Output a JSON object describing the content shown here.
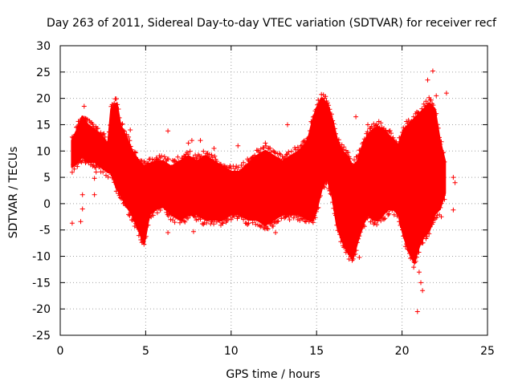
{
  "chart_data": {
    "type": "scatter",
    "title": "Day 263 of 2011, Sidereal Day-to-day VTEC variation (SDTVAR) for receiver recf",
    "xlabel": "GPS time / hours",
    "ylabel": "SDTVAR / TECUs",
    "xlim": [
      0,
      25
    ],
    "ylim": [
      -25,
      30
    ],
    "xticks": [
      0,
      5,
      10,
      15,
      20,
      25
    ],
    "yticks": [
      -25,
      -20,
      -15,
      -10,
      -5,
      0,
      5,
      10,
      15,
      20,
      25,
      30
    ],
    "grid": true,
    "marker": "+",
    "color": "#ff0000",
    "envelope": {
      "description": "Dense point cloud approximated as a min/max band over GPS time",
      "x": [
        0.7,
        1.0,
        1.3,
        1.6,
        2.0,
        2.4,
        2.8,
        3.0,
        3.3,
        3.5,
        3.8,
        4.2,
        4.6,
        4.9,
        5.2,
        5.6,
        6.0,
        6.5,
        7.0,
        7.5,
        8.0,
        8.5,
        9.0,
        9.5,
        10.0,
        10.5,
        11.0,
        11.5,
        12.0,
        12.5,
        13.0,
        13.5,
        14.0,
        14.5,
        14.8,
        15.0,
        15.3,
        15.6,
        15.9,
        16.2,
        16.5,
        16.8,
        17.1,
        17.4,
        17.7,
        18.0,
        18.3,
        18.6,
        18.9,
        19.2,
        19.5,
        19.8,
        20.1,
        20.4,
        20.7,
        21.0,
        21.3,
        21.6,
        21.9,
        22.2,
        22.5
      ],
      "ymax": [
        12.0,
        14.0,
        16.5,
        15.0,
        14.0,
        13.0,
        11.0,
        18.0,
        19.0,
        15.0,
        13.0,
        10.0,
        8.0,
        7.0,
        7.5,
        8.0,
        8.0,
        7.0,
        8.0,
        9.0,
        8.0,
        9.0,
        8.0,
        7.0,
        6.0,
        6.0,
        7.5,
        9.0,
        10.0,
        9.0,
        8.0,
        9.0,
        10.0,
        12.0,
        16.0,
        18.0,
        20.0,
        19.0,
        16.0,
        12.0,
        10.0,
        9.0,
        7.0,
        8.0,
        11.0,
        13.0,
        14.0,
        14.5,
        14.0,
        13.0,
        12.0,
        11.0,
        14.0,
        15.0,
        16.0,
        17.0,
        18.0,
        19.0,
        18.0,
        12.0,
        8.0
      ],
      "ymin": [
        7.0,
        8.0,
        9.0,
        8.0,
        8.0,
        7.0,
        6.0,
        6.0,
        3.0,
        2.0,
        0.0,
        -2.0,
        -5.0,
        -7.5,
        -2.0,
        -1.0,
        -0.5,
        -2.0,
        -3.0,
        -2.0,
        -2.0,
        -3.0,
        -3.0,
        -3.0,
        -2.0,
        -2.0,
        -3.0,
        -3.0,
        -4.0,
        -3.0,
        -2.0,
        -2.0,
        -2.0,
        -3.0,
        -3.0,
        -1.0,
        3.0,
        5.0,
        2.0,
        -4.0,
        -7.0,
        -9.0,
        -10.5,
        -7.0,
        -4.0,
        -2.0,
        -3.0,
        -3.0,
        -2.0,
        -1.0,
        -1.0,
        -2.0,
        -6.0,
        -9.0,
        -11.0,
        -8.0,
        -6.0,
        -5.0,
        -2.0,
        -1.0,
        2.0
      ],
      "center": [
        10.0,
        11.0,
        12.5,
        11.5,
        11.0,
        10.0,
        8.5,
        12.0,
        11.0,
        8.5,
        6.5,
        4.0,
        1.5,
        -0.5,
        2.5,
        3.5,
        3.8,
        2.5,
        2.5,
        3.5,
        3.0,
        3.0,
        2.5,
        2.0,
        2.0,
        2.0,
        2.2,
        3.0,
        3.0,
        3.0,
        3.0,
        3.5,
        4.0,
        4.5,
        6.5,
        8.5,
        11.5,
        12.0,
        9.0,
        4.0,
        1.5,
        0.0,
        -1.8,
        0.5,
        3.5,
        5.5,
        5.5,
        5.8,
        6.0,
        6.0,
        5.5,
        4.5,
        4.0,
        3.0,
        2.5,
        4.5,
        6.0,
        7.0,
        8.0,
        5.5,
        5.0
      ]
    },
    "outliers": [
      {
        "x": 0.7,
        "y": -3.7
      },
      {
        "x": 1.2,
        "y": -3.4
      },
      {
        "x": 1.3,
        "y": -1.0
      },
      {
        "x": 1.3,
        "y": 1.7
      },
      {
        "x": 2.0,
        "y": 1.7
      },
      {
        "x": 2.0,
        "y": 4.8
      },
      {
        "x": 2.1,
        "y": 6.0
      },
      {
        "x": 1.4,
        "y": 18.5
      },
      {
        "x": 4.1,
        "y": 14.0
      },
      {
        "x": 6.3,
        "y": 13.8
      },
      {
        "x": 7.5,
        "y": 11.5
      },
      {
        "x": 7.7,
        "y": 12.0
      },
      {
        "x": 8.2,
        "y": 12.0
      },
      {
        "x": 7.8,
        "y": -5.3
      },
      {
        "x": 6.3,
        "y": -5.5
      },
      {
        "x": 9.0,
        "y": 10.5
      },
      {
        "x": 10.4,
        "y": 11.0
      },
      {
        "x": 12.6,
        "y": -5.5
      },
      {
        "x": 12.0,
        "y": 11.5
      },
      {
        "x": 13.3,
        "y": 15.0
      },
      {
        "x": 13.2,
        "y": 9.0
      },
      {
        "x": 17.0,
        "y": -10.0
      },
      {
        "x": 17.5,
        "y": -10.2
      },
      {
        "x": 17.3,
        "y": 16.5
      },
      {
        "x": 18.0,
        "y": 15.0
      },
      {
        "x": 18.3,
        "y": -2.0
      },
      {
        "x": 19.0,
        "y": -2.8
      },
      {
        "x": 20.5,
        "y": -3.0
      },
      {
        "x": 20.7,
        "y": -11.0
      },
      {
        "x": 21.0,
        "y": -13.0
      },
      {
        "x": 21.1,
        "y": -15.0
      },
      {
        "x": 21.2,
        "y": -16.5
      },
      {
        "x": 20.9,
        "y": -20.5
      },
      {
        "x": 21.5,
        "y": 23.5
      },
      {
        "x": 21.8,
        "y": 25.2
      },
      {
        "x": 22.3,
        "y": -2.5
      },
      {
        "x": 22.6,
        "y": 21.0
      },
      {
        "x": 23.0,
        "y": 5.0
      },
      {
        "x": 23.1,
        "y": 4.0
      },
      {
        "x": 23.0,
        "y": -1.2
      },
      {
        "x": 21.6,
        "y": -4.0
      },
      {
        "x": 22.0,
        "y": 20.5
      }
    ]
  }
}
